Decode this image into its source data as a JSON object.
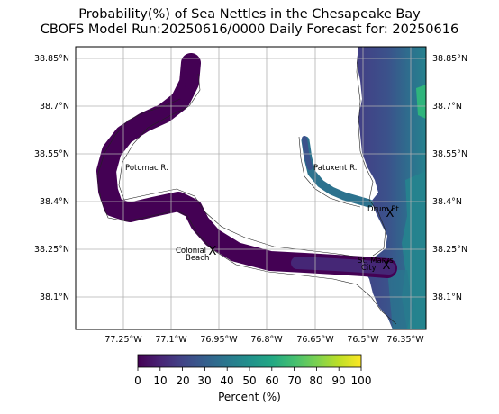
{
  "title": {
    "line1": "Probability(%) of Sea Nettles in the Chesapeake Bay",
    "line2": "CBOFS Model Run:20250616/0000 Daily Forecast for: 20250616"
  },
  "map": {
    "lon_ticks": [
      "77.25°W",
      "77.1°W",
      "76.95°W",
      "76.8°W",
      "76.65°W",
      "76.5°W",
      "76.35°W"
    ],
    "lat_ticks": [
      "38.85°N",
      "38.7°N",
      "38.55°N",
      "38.4°N",
      "38.25°N",
      "38.1°N"
    ],
    "grid": true,
    "place_labels": [
      {
        "id": "potomac",
        "text": "Potomac R."
      },
      {
        "id": "patuxent",
        "text": "Patuxent R."
      },
      {
        "id": "drum",
        "text": "Drum Pt"
      },
      {
        "id": "colonial1",
        "text": "Colonial"
      },
      {
        "id": "colonial2",
        "text": "Beach"
      },
      {
        "id": "stmarys1",
        "text": "St. Marys"
      },
      {
        "id": "stmarys2",
        "text": "City"
      }
    ],
    "markers": [
      "X",
      "X",
      "X"
    ]
  },
  "colorbar": {
    "label": "Percent (%)",
    "ticks": [
      "0",
      "10",
      "20",
      "30",
      "40",
      "50",
      "60",
      "70",
      "80",
      "90",
      "100"
    ],
    "colormap": "viridis",
    "colors": [
      "#440154",
      "#482475",
      "#414487",
      "#355f8d",
      "#2a788e",
      "#21918c",
      "#22a884",
      "#44bf70",
      "#7ad151",
      "#bddf26",
      "#fde725"
    ]
  }
}
